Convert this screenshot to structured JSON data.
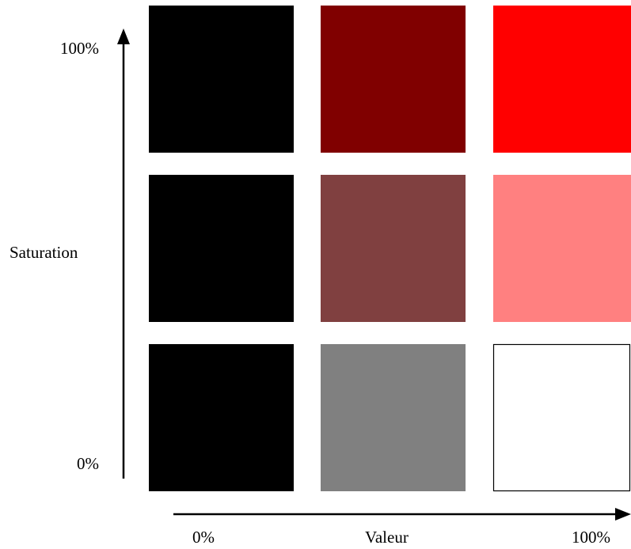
{
  "diagram": {
    "saturation_axis": {
      "title": "Saturation",
      "top_label": "100%",
      "bottom_label": "0%"
    },
    "value_axis": {
      "title": "Valeur",
      "left_label": "0%",
      "right_label": "100%"
    },
    "swatch_grid": [
      [
        {
          "name": "swatch-sat100-val0",
          "color": "#000000",
          "outlined": false
        },
        {
          "name": "swatch-sat100-val50",
          "color": "#800000",
          "outlined": false
        },
        {
          "name": "swatch-sat100-val100",
          "color": "#ff0000",
          "outlined": false
        }
      ],
      [
        {
          "name": "swatch-sat50-val0",
          "color": "#000000",
          "outlined": false
        },
        {
          "name": "swatch-sat50-val50",
          "color": "#804040",
          "outlined": false
        },
        {
          "name": "swatch-sat50-val100",
          "color": "#ff8080",
          "outlined": false
        }
      ],
      [
        {
          "name": "swatch-sat0-val0",
          "color": "#000000",
          "outlined": false
        },
        {
          "name": "swatch-sat0-val50",
          "color": "#808080",
          "outlined": false
        },
        {
          "name": "swatch-sat0-val100",
          "color": "#ffffff",
          "outlined": true
        }
      ]
    ],
    "axis_color": "#000000"
  }
}
